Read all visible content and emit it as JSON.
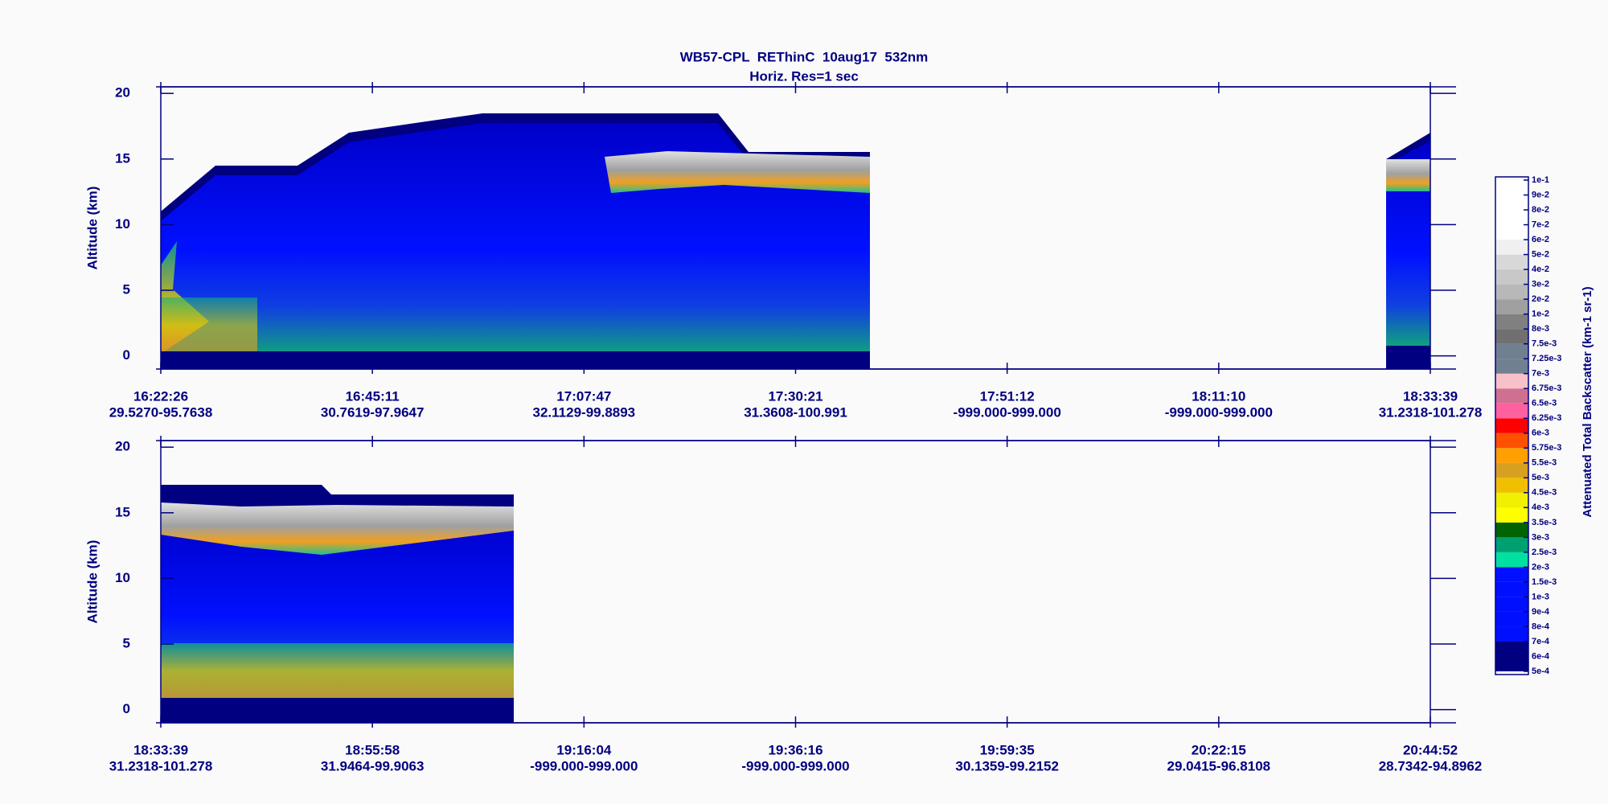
{
  "chart_data": {
    "type": "curtain",
    "title": "WB57-CPL  REThinC  10aug17  532nm",
    "subtitle": "Horiz. Res=1 sec",
    "panels": [
      {
        "ylabel": "Altitude (km)",
        "ylim": [
          -1,
          20.5
        ],
        "yticks": [
          0,
          5,
          10,
          15,
          20
        ],
        "categories": [
          {
            "time": "16:22:26",
            "location": "29.5270-95.7638"
          },
          {
            "time": "16:45:11",
            "location": "30.7619-97.9647"
          },
          {
            "time": "17:07:47",
            "location": "32.1129-99.8893"
          },
          {
            "time": "17:30:21",
            "location": "31.3608-100.991"
          },
          {
            "time": "17:51:12",
            "location": "-999.000-999.000"
          },
          {
            "time": "18:11:10",
            "location": "-999.000-999.000"
          },
          {
            "time": "18:33:39",
            "location": "31.2318-101.278"
          }
        ]
      },
      {
        "ylabel": "Altitude (km)",
        "ylim": [
          -1,
          20.5
        ],
        "yticks": [
          0,
          5,
          10,
          15,
          20
        ],
        "categories": [
          {
            "time": "18:33:39",
            "location": "31.2318-101.278"
          },
          {
            "time": "18:55:58",
            "location": "31.9464-99.9063"
          },
          {
            "time": "19:16:04",
            "location": "-999.000-999.000"
          },
          {
            "time": "19:36:16",
            "location": "-999.000-999.000"
          },
          {
            "time": "19:59:35",
            "location": "30.1359-99.2152"
          },
          {
            "time": "20:22:15",
            "location": "29.0415-96.8108"
          },
          {
            "time": "20:44:52",
            "location": "28.7342-94.8962"
          }
        ]
      }
    ],
    "colorbar": {
      "label": "Attenuated Total Backscatter (km-1 sr-1)",
      "ticks": [
        {
          "value": 0.0005,
          "label": "5e-4"
        },
        {
          "value": 0.0006,
          "label": "6e-4"
        },
        {
          "value": 0.0007,
          "label": "7e-4"
        },
        {
          "value": 0.0008,
          "label": "8e-4"
        },
        {
          "value": 0.0009,
          "label": "9e-4"
        },
        {
          "value": 0.001,
          "label": "1e-3"
        },
        {
          "value": 0.0015,
          "label": "1.5e-3"
        },
        {
          "value": 0.002,
          "label": "2e-3"
        },
        {
          "value": 0.0025,
          "label": "2.5e-3"
        },
        {
          "value": 0.003,
          "label": "3e-3"
        },
        {
          "value": 0.0035,
          "label": "3.5e-3"
        },
        {
          "value": 0.004,
          "label": "4e-3"
        },
        {
          "value": 0.0045,
          "label": "4.5e-3"
        },
        {
          "value": 0.005,
          "label": "5e-3"
        },
        {
          "value": 0.0055,
          "label": "5.5e-3"
        },
        {
          "value": 0.00575,
          "label": "5.75e-3"
        },
        {
          "value": 0.006,
          "label": "6e-3"
        },
        {
          "value": 0.00625,
          "label": "6.25e-3"
        },
        {
          "value": 0.0065,
          "label": "6.5e-3"
        },
        {
          "value": 0.00675,
          "label": "6.75e-3"
        },
        {
          "value": 0.007,
          "label": "7e-3"
        },
        {
          "value": 0.00725,
          "label": "7.25e-3"
        },
        {
          "value": 0.0075,
          "label": "7.5e-3"
        },
        {
          "value": 0.008,
          "label": "8e-3"
        },
        {
          "value": 0.01,
          "label": "1e-2"
        },
        {
          "value": 0.02,
          "label": "2e-2"
        },
        {
          "value": 0.03,
          "label": "3e-2"
        },
        {
          "value": 0.04,
          "label": "4e-2"
        },
        {
          "value": 0.05,
          "label": "5e-2"
        },
        {
          "value": 0.06,
          "label": "6e-2"
        },
        {
          "value": 0.07,
          "label": "7e-2"
        },
        {
          "value": 0.08,
          "label": "8e-2"
        },
        {
          "value": 0.09,
          "label": "9e-2"
        },
        {
          "value": 0.1,
          "label": "1e-1"
        }
      ],
      "colors": [
        "#000080",
        "#000080",
        "#0010ff",
        "#0010ff",
        "#0010ff",
        "#0010ff",
        "#0010ff",
        "#00e0a0",
        "#00a070",
        "#006400",
        "#ffff00",
        "#f0f000",
        "#f0c000",
        "#d8a020",
        "#ffa000",
        "#ff5000",
        "#ff0000",
        "#ff60a0",
        "#d07090",
        "#f8c0c8",
        "#708090",
        "#708090",
        "#707070",
        "#808080",
        "#a0a0a0",
        "#b8b8b8",
        "#c8c8c8",
        "#d8d8d8",
        "#f0f0f0",
        "#ffffff",
        "#ffffff",
        "#ffffff",
        "#ffffff"
      ]
    }
  }
}
